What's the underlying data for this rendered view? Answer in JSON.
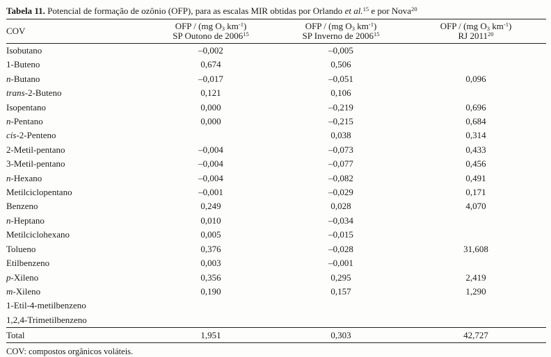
{
  "caption": {
    "label": "Tabela 11.",
    "text_1": " Potencial de formação de ozônio (OFP), para as escalas MIR obtidas por Orlando ",
    "etal": "et al.",
    "ref_1": "15",
    "text_2": " e por Nova",
    "ref_2": "20"
  },
  "header": {
    "cov": "COV",
    "ofp_cols": [
      {
        "unit_a": "OFP / (mg O",
        "unit_sub": "3",
        "unit_b": " km",
        "unit_sup": "-1",
        "unit_c": ")",
        "scope": "SP Outono de 2006",
        "scope_ref": "15"
      },
      {
        "unit_a": "OFP / (mg O",
        "unit_sub": "3",
        "unit_b": " km",
        "unit_sup": "-1",
        "unit_c": ")",
        "scope": "SP Inverno de 2006",
        "scope_ref": "15"
      },
      {
        "unit_a": "OFP / (mg O",
        "unit_sub": "3",
        "unit_b": " km",
        "unit_sup": "-1",
        "unit_c": ")",
        "scope": "RJ 2011",
        "scope_ref": "20"
      }
    ]
  },
  "rows": [
    {
      "italic": "",
      "name": "Isobutano",
      "values": [
        "–0,002",
        "–0,005",
        ""
      ]
    },
    {
      "italic": "",
      "name": "1-Buteno",
      "values": [
        "0,674",
        "0,506",
        ""
      ]
    },
    {
      "italic": "n",
      "name": "-Butano",
      "values": [
        "–0,017",
        "–0,051",
        "0,096"
      ]
    },
    {
      "italic": "trans",
      "name": "-2-Buteno",
      "values": [
        "0,121",
        "0,106",
        ""
      ]
    },
    {
      "italic": "",
      "name": "Isopentano",
      "values": [
        "0,000",
        "–0,219",
        "0,696"
      ]
    },
    {
      "italic": "n",
      "name": "-Pentano",
      "values": [
        "0,000",
        "–0,215",
        "0,684"
      ]
    },
    {
      "italic": "cis",
      "name": "-2-Penteno",
      "values": [
        "",
        "0,038",
        "0,314"
      ]
    },
    {
      "italic": "",
      "name": "2-Metil-pentano",
      "values": [
        "–0,004",
        "–0,073",
        "0,433"
      ]
    },
    {
      "italic": "",
      "name": "3-Metil-pentano",
      "values": [
        "–0,004",
        "–0,077",
        "0,456"
      ]
    },
    {
      "italic": "n",
      "name": "-Hexano",
      "values": [
        "–0,004",
        "–0,082",
        "0,491"
      ]
    },
    {
      "italic": "",
      "name": "Metilciclopentano",
      "values": [
        "–0,001",
        "–0,029",
        "0,171"
      ]
    },
    {
      "italic": "",
      "name": "Benzeno",
      "values": [
        "0,249",
        "0,028",
        "4,070"
      ]
    },
    {
      "italic": "n",
      "name": "-Heptano",
      "values": [
        "0,010",
        "–0,034",
        ""
      ]
    },
    {
      "italic": "",
      "name": "Metilciclohexano",
      "values": [
        "0,005",
        "–0,015",
        ""
      ]
    },
    {
      "italic": "",
      "name": "Tolueno",
      "values": [
        "0,376",
        "–0,028",
        "31,608"
      ]
    },
    {
      "italic": "",
      "name": "Etilbenzeno",
      "values": [
        "0,003",
        "–0,001",
        ""
      ]
    },
    {
      "italic": "p",
      "name": "-Xileno",
      "values": [
        "0,356",
        "0,295",
        "2,419"
      ]
    },
    {
      "italic": "m",
      "name": "-Xileno",
      "values": [
        "0,190",
        "0,157",
        "1,290"
      ]
    },
    {
      "italic": "",
      "name": "1-Etil-4-metilbenzeno",
      "values": [
        "",
        "",
        ""
      ]
    },
    {
      "italic": "",
      "name": "1,2,4-Trimetilbenzeno",
      "values": [
        "",
        "",
        ""
      ]
    }
  ],
  "total": {
    "label": "Total",
    "values": [
      "1,951",
      "0,303",
      "42,727"
    ]
  },
  "footnote": "COV: compostos orgânicos voláteis."
}
